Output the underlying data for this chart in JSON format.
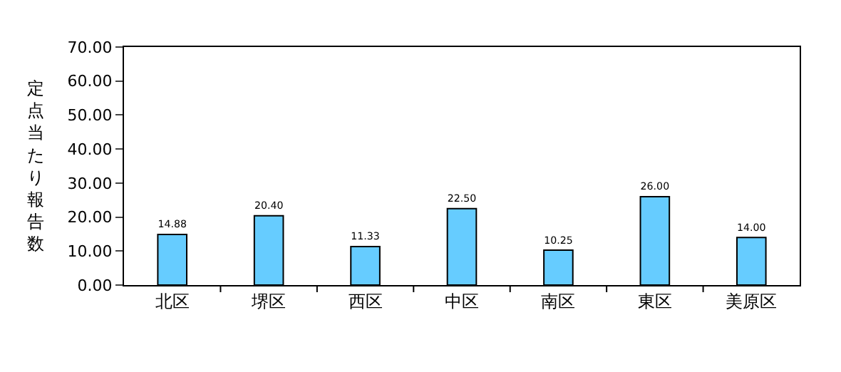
{
  "chart_data": {
    "type": "bar",
    "ylabel": "定点当たり報告数",
    "categories": [
      "北区",
      "堺区",
      "西区",
      "中区",
      "南区",
      "東区",
      "美原区"
    ],
    "values": [
      14.88,
      20.4,
      11.33,
      22.5,
      10.25,
      26.0,
      14.0
    ],
    "value_labels": [
      "14.88",
      "20.40",
      "11.33",
      "22.50",
      "10.25",
      "26.00",
      "14.00"
    ],
    "color": "#66ccff",
    "ylim": [
      0,
      70
    ],
    "yticks": [
      {
        "value": 0,
        "label": "0.00"
      },
      {
        "value": 10,
        "label": "10.00"
      },
      {
        "value": 20,
        "label": "20.00"
      },
      {
        "value": 30,
        "label": "30.00"
      },
      {
        "value": 40,
        "label": "40.00"
      },
      {
        "value": 50,
        "label": "50.00"
      },
      {
        "value": 60,
        "label": "60.00"
      },
      {
        "value": 70,
        "label": "70.00"
      }
    ]
  }
}
